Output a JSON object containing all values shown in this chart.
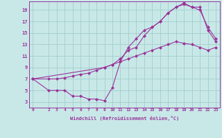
{
  "xlabel": "Windchill (Refroidissement éolien,°C)",
  "bg_color": "#c8e8e8",
  "grid_color": "#a8d0d0",
  "line_color": "#993399",
  "xlim": [
    -0.5,
    23.5
  ],
  "ylim": [
    2,
    20.5
  ],
  "xticks": [
    0,
    2,
    3,
    4,
    5,
    6,
    7,
    8,
    9,
    10,
    11,
    12,
    13,
    14,
    15,
    16,
    17,
    18,
    19,
    20,
    21,
    22,
    23
  ],
  "yticks": [
    3,
    5,
    7,
    9,
    11,
    13,
    15,
    17,
    19
  ],
  "line1_x": [
    0,
    2,
    3,
    4,
    5,
    6,
    7,
    8,
    9,
    10,
    11,
    12,
    13,
    14,
    15,
    16,
    17,
    18,
    19,
    20,
    21,
    22,
    23
  ],
  "line1_y": [
    7,
    5,
    5,
    5,
    4,
    4,
    3.5,
    3.5,
    3.2,
    5.5,
    10,
    12.5,
    14,
    15.5,
    16,
    17,
    18.5,
    19.5,
    20,
    19.5,
    19.5,
    15.5,
    13.5
  ],
  "line2_x": [
    0,
    2,
    3,
    4,
    5,
    6,
    7,
    8,
    9,
    10,
    11,
    12,
    13,
    14,
    15,
    16,
    17,
    18,
    19,
    20,
    21,
    22,
    23
  ],
  "line2_y": [
    7,
    7,
    7,
    7.2,
    7.5,
    7.8,
    8.0,
    8.5,
    9.0,
    9.5,
    10,
    10.5,
    11,
    11.5,
    12,
    12.5,
    13,
    13.5,
    13.2,
    13.0,
    12.5,
    12.0,
    12.5
  ],
  "line3_x": [
    0,
    9,
    10,
    11,
    12,
    13,
    14,
    15,
    16,
    17,
    18,
    19,
    20,
    21,
    22,
    23
  ],
  "line3_y": [
    7,
    9.0,
    9.5,
    10.5,
    12.0,
    12.5,
    14.5,
    16,
    17,
    18.5,
    19.5,
    20.2,
    19.5,
    19.0,
    16.0,
    14.0
  ]
}
